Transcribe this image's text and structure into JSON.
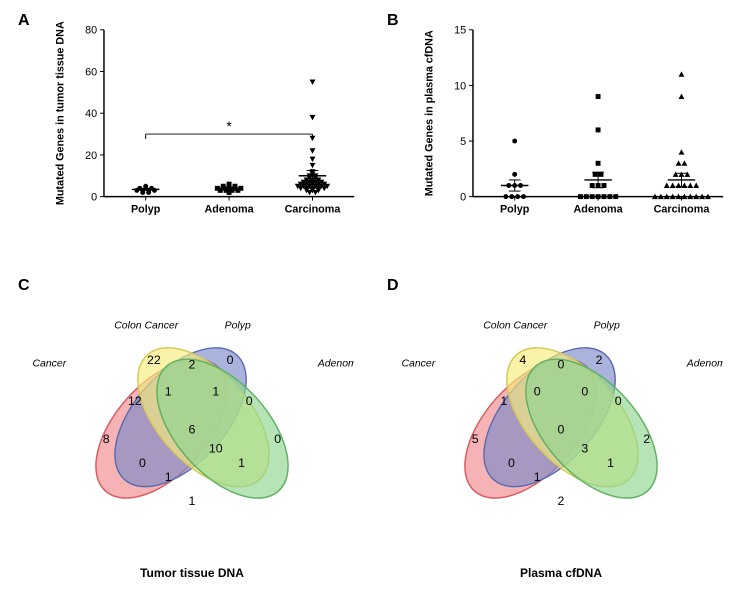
{
  "panelA": {
    "label": "A",
    "type": "scatter",
    "ylabel": "Mutated Genes in tumor tissue DNA",
    "ylim": [
      0,
      80
    ],
    "ytick_step": 20,
    "categories": [
      "Polyp",
      "Adenoma",
      "Carcinoma"
    ],
    "label_fontsize": 11,
    "tick_fontsize": 11,
    "marker_color": "#000000",
    "significance_bracket": {
      "from": 0,
      "to": 2,
      "label": "*",
      "y": 30
    },
    "series": [
      {
        "x": 0,
        "marker": "circle",
        "values": [
          2,
          3,
          3,
          4,
          4,
          3,
          5,
          4,
          3,
          2
        ]
      },
      {
        "x": 1,
        "marker": "square",
        "values": [
          2,
          3,
          4,
          5,
          4,
          3,
          6,
          5,
          4,
          3,
          4,
          5,
          4,
          3
        ]
      },
      {
        "x": 2,
        "marker": "triangle-down",
        "values": [
          2,
          3,
          4,
          5,
          6,
          7,
          8,
          9,
          10,
          11,
          12,
          5,
          6,
          7,
          4,
          3,
          2,
          5,
          8,
          15,
          18,
          22,
          28,
          38,
          55,
          4,
          5,
          6,
          7,
          3,
          4,
          5,
          6,
          8,
          9,
          10,
          4,
          5,
          6,
          7
        ]
      }
    ],
    "error_bars": [
      {
        "x": 0,
        "mean": 3.5,
        "sem": 0.4
      },
      {
        "x": 1,
        "mean": 4,
        "sem": 0.6
      },
      {
        "x": 2,
        "mean": 10,
        "sem": 2.5
      }
    ]
  },
  "panelB": {
    "label": "B",
    "type": "scatter",
    "ylabel": "Mutated Genes in plasma cfDNA",
    "ylim": [
      0,
      15
    ],
    "ytick_step": 5,
    "categories": [
      "Polyp",
      "Adenoma",
      "Carcinoma"
    ],
    "label_fontsize": 11,
    "tick_fontsize": 11,
    "marker_color": "#000000",
    "series": [
      {
        "x": 0,
        "marker": "circle",
        "values": [
          0,
          0,
          0,
          0,
          1,
          1,
          1,
          2,
          5
        ]
      },
      {
        "x": 1,
        "marker": "square",
        "values": [
          0,
          0,
          0,
          0,
          0,
          0,
          0,
          1,
          1,
          1,
          2,
          2,
          3,
          6,
          9
        ]
      },
      {
        "x": 2,
        "marker": "triangle-up",
        "values": [
          0,
          0,
          0,
          0,
          0,
          0,
          0,
          0,
          0,
          0,
          1,
          1,
          1,
          1,
          1,
          1,
          2,
          2,
          2,
          3,
          3,
          4,
          9,
          11
        ]
      }
    ],
    "error_bars": [
      {
        "x": 0,
        "mean": 1,
        "sem": 0.5
      },
      {
        "x": 1,
        "mean": 1.5,
        "sem": 0.7
      },
      {
        "x": 2,
        "mean": 1.5,
        "sem": 0.6
      }
    ]
  },
  "panelC": {
    "label": "C",
    "type": "venn4",
    "title": "Tumor tissue DNA",
    "sets": [
      {
        "name": "Rectal Cancer",
        "color": "#f08b8e",
        "stroke": "#d85a60"
      },
      {
        "name": "Colon Cancer",
        "color": "#7c8bc9",
        "stroke": "#5a6ab0"
      },
      {
        "name": "Polyp",
        "color": "#f6ec7c",
        "stroke": "#d4c850"
      },
      {
        "name": "Adenoma",
        "color": "#8fd68f",
        "stroke": "#5eb060"
      }
    ],
    "regions": {
      "rectal_only": 8,
      "colon_only": 22,
      "polyp_only": 0,
      "adenoma_only": 0,
      "rectal_colon": 12,
      "colon_polyp": 2,
      "polyp_adenoma": 0,
      "rectal_adenoma": 1,
      "rectal_polyp": 0,
      "colon_adenoma": 1,
      "rectal_colon_polyp": 1,
      "colon_polyp_adenoma": 1,
      "rectal_polyp_adenoma": 1,
      "rectal_colon_adenoma": 10,
      "all": 6
    },
    "fill_opacity": 0.65
  },
  "panelD": {
    "label": "D",
    "type": "venn4",
    "title": "Plasma cfDNA",
    "sets": [
      {
        "name": "Rectal Cancer",
        "color": "#f08b8e",
        "stroke": "#d85a60"
      },
      {
        "name": "Colon Cancer",
        "color": "#7c8bc9",
        "stroke": "#5a6ab0"
      },
      {
        "name": "Polyp",
        "color": "#f6ec7c",
        "stroke": "#d4c850"
      },
      {
        "name": "Adenoma",
        "color": "#8fd68f",
        "stroke": "#5eb060"
      }
    ],
    "regions": {
      "rectal_only": 5,
      "colon_only": 4,
      "polyp_only": 2,
      "adenoma_only": 2,
      "rectal_colon": 1,
      "colon_polyp": 0,
      "polyp_adenoma": 0,
      "rectal_adenoma": 2,
      "rectal_polyp": 0,
      "colon_adenoma": 1,
      "rectal_colon_polyp": 0,
      "colon_polyp_adenoma": 0,
      "rectal_polyp_adenoma": 1,
      "rectal_colon_adenoma": 3,
      "all": 0
    },
    "fill_opacity": 0.65
  }
}
